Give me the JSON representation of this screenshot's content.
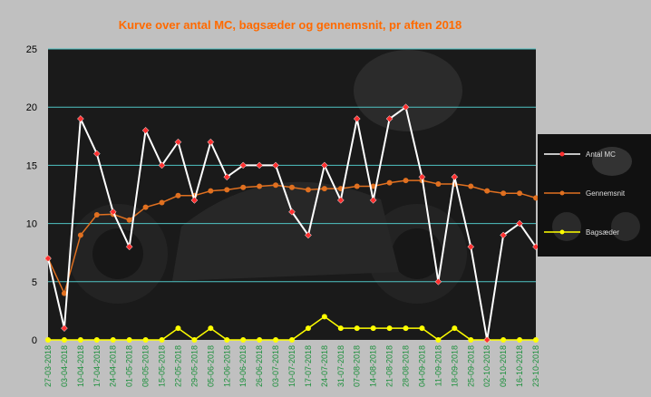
{
  "chart_data": {
    "type": "line",
    "title": "Kurve over antal MC, bagsæder og gennemsnit, pr aften 2018",
    "ylim": [
      0,
      25
    ],
    "yticks": [
      "0",
      "5",
      "10",
      "15",
      "20",
      "25"
    ],
    "grid": true,
    "legend_placement": "right",
    "categories": [
      "27-03-2018",
      "03-04-2018",
      "10-04-2018",
      "17-04-2018",
      "24-04-2018",
      "01-05-2018",
      "08-05-2018",
      "15-05-2018",
      "22-05-2018",
      "29-05-2018",
      "05-06-2018",
      "12-06-2018",
      "19-06-2018",
      "26-06-2018",
      "03-07-2018",
      "10-07-2018",
      "17-07-2018",
      "24-07-2018",
      "31-07-2018",
      "07-08-2018",
      "14-08-2018",
      "21-08-2018",
      "28-08-2018",
      "04-09-2018",
      "11-09-2018",
      "18-09-2018",
      "25-09-2018",
      "02-10-2018",
      "09-10-2018",
      "16-10-2018",
      "23-10-2018"
    ],
    "series": [
      {
        "name": "Antal MC",
        "color": "#ffffff",
        "marker_color": "#ff3030",
        "values": [
          7,
          1,
          19,
          16,
          11,
          8,
          18,
          15,
          17,
          12,
          17,
          14,
          15,
          15,
          15,
          11,
          9,
          15,
          12,
          19,
          12,
          19,
          20,
          14,
          5,
          14,
          8,
          0,
          9,
          10,
          8
        ]
      },
      {
        "name": "Gennemsnit",
        "color": "#e07020",
        "marker_color": "#e07020",
        "values": [
          7,
          4,
          9,
          10.75,
          10.8,
          10.3,
          11.4,
          11.8,
          12.4,
          12.4,
          12.8,
          12.9,
          13.1,
          13.2,
          13.3,
          13.1,
          12.9,
          13,
          13,
          13.2,
          13.2,
          13.5,
          13.7,
          13.7,
          13.4,
          13.4,
          13.2,
          12.8,
          12.6,
          12.6,
          12.2
        ]
      },
      {
        "name": "Bagsæder",
        "color": "#ffff00",
        "marker_color": "#ffff00",
        "values": [
          0,
          0,
          0,
          0,
          0,
          0,
          0,
          0,
          1,
          0,
          1,
          0,
          0,
          0,
          0,
          0,
          1,
          2,
          1,
          1,
          1,
          1,
          1,
          1,
          0,
          1,
          0,
          0,
          0,
          0,
          0
        ]
      }
    ]
  }
}
